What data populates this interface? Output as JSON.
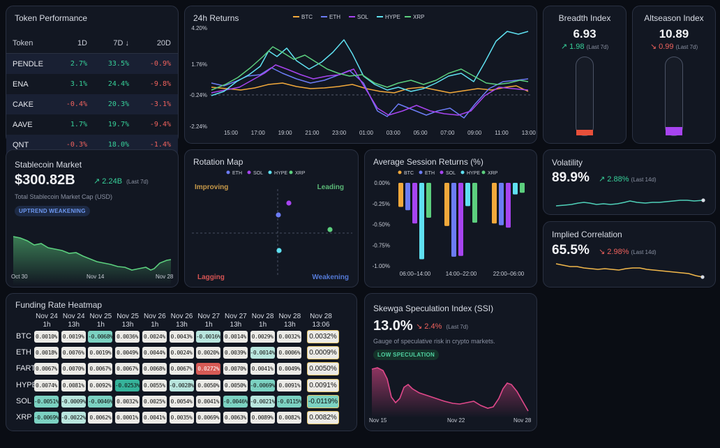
{
  "colors": {
    "btc": "#f2a93b",
    "eth": "#6c7cf5",
    "sol": "#a744f0",
    "hype": "#5fe0f0",
    "xrp": "#5ccf7e",
    "up": "#37d19a",
    "down": "#f0625d"
  },
  "token_performance": {
    "title": "Token Performance",
    "headers": [
      "Token",
      "1D",
      "7D ↓",
      "20D"
    ],
    "rows": [
      {
        "token": "PENDLE",
        "d1": "2.7%",
        "d7": "33.5%",
        "d20": "-0.9%"
      },
      {
        "token": "ENA",
        "d1": "3.1%",
        "d7": "24.4%",
        "d20": "-9.8%"
      },
      {
        "token": "CAKE",
        "d1": "-0.4%",
        "d7": "20.3%",
        "d20": "-3.1%"
      },
      {
        "token": "AAVE",
        "d1": "1.7%",
        "d7": "19.7%",
        "d20": "-9.4%"
      },
      {
        "token": "QNT",
        "d1": "-0.3%",
        "d7": "18.0%",
        "d20": "-1.4%"
      }
    ]
  },
  "returns_24h": {
    "title": "24h Returns",
    "legend": [
      "BTC",
      "ETH",
      "SOL",
      "HYPE",
      "XRP"
    ],
    "y_ticks": [
      "4.20%",
      "1.76%",
      "-0.24%",
      "-2.24%"
    ],
    "x_ticks": [
      "15:00",
      "17:00",
      "19:00",
      "21:00",
      "23:00",
      "01:00",
      "03:00",
      "05:00",
      "07:00",
      "09:00",
      "11:00",
      "13:00"
    ]
  },
  "breadth": {
    "title": "Breadth Index",
    "value": "6.93",
    "change": "1.98",
    "period": "(Last 7d)",
    "fill": 0.07
  },
  "altseason": {
    "title": "Altseason Index",
    "value": "10.89",
    "change": "0.99",
    "period": "(Last 7d)",
    "fill": 0.11
  },
  "stablecoin": {
    "title": "Stablecoin Market",
    "value": "$300.82B",
    "change": "2.24B",
    "period": "(Last 7d)",
    "subtitle": "Total Stablecoin Market Cap (USD)",
    "badge": "UPTREND WEAKENING",
    "x_ticks": [
      "Oct 30",
      "Nov 14",
      "Nov 28"
    ]
  },
  "rotation": {
    "title": "Rotation Map",
    "legend": [
      "ETH",
      "SOL",
      "HYPE",
      "XRP"
    ],
    "quadrants": {
      "improving": "Improving",
      "leading": "Leading",
      "lagging": "Lagging",
      "weakening": "Weakening"
    }
  },
  "session": {
    "title": "Average Session Returns (%)",
    "legend": [
      "BTC",
      "ETH",
      "SOL",
      "HYPE",
      "XRP"
    ],
    "y_ticks": [
      "0.00%",
      "-0.25%",
      "-0.50%",
      "-0.75%",
      "-1.00%"
    ],
    "categories": [
      "06:00–14:00",
      "14:00–22:00",
      "22:00–06:00"
    ],
    "series": [
      {
        "name": "BTC",
        "values": [
          -0.29,
          -0.52,
          -0.49
        ]
      },
      {
        "name": "ETH",
        "values": [
          -0.33,
          -0.89,
          -0.51
        ]
      },
      {
        "name": "SOL",
        "values": [
          -0.49,
          -0.88,
          -0.54
        ]
      },
      {
        "name": "HYPE",
        "values": [
          -0.92,
          -0.28,
          -0.14
        ]
      },
      {
        "name": "XRP",
        "values": [
          -0.42,
          -0.48,
          -0.12
        ]
      }
    ]
  },
  "volatility": {
    "title": "Volatility",
    "value": "89.9%",
    "change": "2.88%",
    "period": "(Last 14d)"
  },
  "correlation": {
    "title": "Implied Correlation",
    "value": "65.5%",
    "change": "2.98%",
    "period": "(Last 14d)"
  },
  "funding": {
    "title": "Funding Rate Heatmap",
    "columns": [
      [
        "Nov 24",
        "1h"
      ],
      [
        "Nov 24",
        "13h"
      ],
      [
        "Nov 25",
        "1h"
      ],
      [
        "Nov 25",
        "13h"
      ],
      [
        "Nov 26",
        "1h"
      ],
      [
        "Nov 26",
        "13h"
      ],
      [
        "Nov 27",
        "1h"
      ],
      [
        "Nov 27",
        "13h"
      ],
      [
        "Nov 28",
        "1h"
      ],
      [
        "Nov 28",
        "13h"
      ],
      [
        "Nov 28",
        "13:06"
      ]
    ],
    "rows": [
      {
        "asset": "BTC",
        "values": [
          "0.0010%",
          "0.0019%",
          "-0.0068%",
          "0.0036%",
          "0.0024%",
          "0.0043%",
          "-0.0016%",
          "0.0014%",
          "0.0029%",
          "0.0032%",
          "0.0032%"
        ]
      },
      {
        "asset": "ETH",
        "values": [
          "0.0018%",
          "0.0076%",
          "0.0019%",
          "0.0049%",
          "0.0044%",
          "0.0024%",
          "0.0020%",
          "0.0039%",
          "-0.0014%",
          "0.0006%",
          "0.0009%"
        ]
      },
      {
        "asset": "FART",
        "values": [
          "0.0067%",
          "0.0070%",
          "0.0067%",
          "0.0067%",
          "0.0068%",
          "0.0067%",
          "0.0272%",
          "0.0070%",
          "0.0041%",
          "0.0049%",
          "0.0050%"
        ]
      },
      {
        "asset": "HYPE",
        "values": [
          "0.0074%",
          "0.0081%",
          "0.0092%",
          "-0.0253%",
          "0.0055%",
          "-0.0028%",
          "0.0050%",
          "0.0050%",
          "-0.0069%",
          "0.0091%",
          "0.0091%"
        ]
      },
      {
        "asset": "SOL",
        "values": [
          "-0.0051%",
          "-0.0009%",
          "-0.0046%",
          "0.0032%",
          "0.0025%",
          "0.0054%",
          "0.0041%",
          "-0.0046%",
          "-0.0021%",
          "-0.0115%",
          "-0.0119%"
        ]
      },
      {
        "asset": "XRP",
        "values": [
          "-0.0069%",
          "-0.0022%",
          "0.0062%",
          "0.0001%",
          "0.0041%",
          "0.0035%",
          "0.0069%",
          "0.0063%",
          "0.0089%",
          "0.0082%",
          "0.0082%"
        ]
      }
    ]
  },
  "ssi": {
    "title": "Skewga Speculation Index (SSI)",
    "value": "13.0%",
    "change": "2.4%",
    "period": "(Last 7d)",
    "subtitle": "Gauge of speculative risk in crypto markets.",
    "badge": "LOW SPECULATION",
    "x_ticks": [
      "Nov 15",
      "Nov 22",
      "Nov 28"
    ]
  }
}
